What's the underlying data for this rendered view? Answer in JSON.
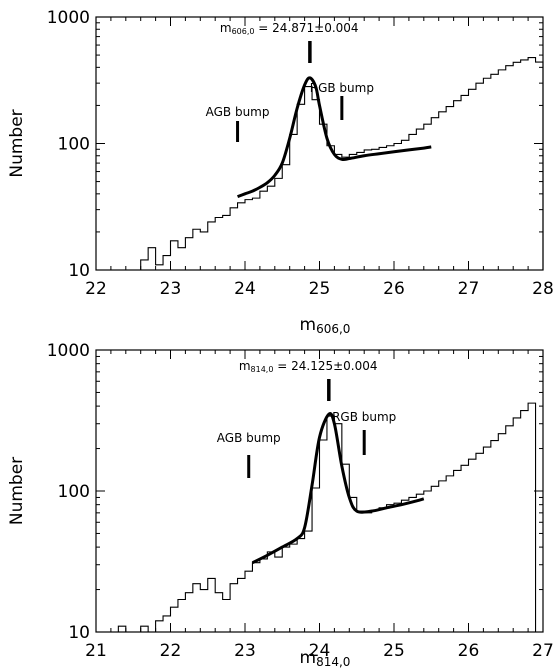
{
  "chart_data": [
    {
      "type": "line",
      "panel": "top",
      "xlim": [
        22,
        28
      ],
      "ylim": [
        10,
        1000
      ],
      "yscale": "log",
      "xticks": [
        "22",
        "23",
        "24",
        "25",
        "26",
        "27",
        "28"
      ],
      "yticks": [
        "10",
        "100",
        "1000"
      ],
      "xlabel": "m",
      "xlabel_sub": "606,0",
      "ylabel": "Number",
      "grid": false,
      "peak_label": {
        "prefix": "m",
        "sub": "606,0",
        "value": " = 24.871±0.004",
        "x": 24.871
      },
      "bumps": [
        {
          "label": "AGB bump",
          "x": 23.9
        },
        {
          "label": "RGB bump",
          "x": 25.3
        }
      ],
      "series": [
        {
          "kind": "histogram",
          "bin_edges": [
            22.5,
            22.6,
            22.7,
            22.8,
            22.9,
            23.0,
            23.1,
            23.2,
            23.3,
            23.4,
            23.5,
            23.6,
            23.7,
            23.8,
            23.9,
            24.0,
            24.1,
            24.2,
            24.3,
            24.4,
            24.5,
            24.6,
            24.7,
            24.8,
            24.9,
            25.0,
            25.1,
            25.2,
            25.3,
            25.4,
            25.5,
            25.6,
            25.7,
            25.8,
            25.9,
            26.0,
            26.1,
            26.2,
            26.3,
            26.4,
            26.5,
            26.6,
            26.7,
            26.8,
            26.9,
            27.0,
            27.1,
            27.2,
            27.3,
            27.4,
            27.5,
            27.6,
            27.7,
            27.8,
            27.9,
            28.0
          ],
          "counts": [
            10,
            12,
            15,
            11,
            13,
            17,
            15,
            18,
            21,
            20,
            24,
            26,
            27,
            31,
            34,
            36,
            37,
            42,
            46,
            53,
            68,
            118,
            204,
            282,
            222,
            142,
            96,
            82,
            78,
            82,
            85,
            89,
            90,
            93,
            96,
            100,
            106,
            118,
            130,
            142,
            160,
            178,
            196,
            218,
            240,
            268,
            300,
            328,
            352,
            382,
            412,
            438,
            458,
            478,
            440
          ]
        },
        {
          "kind": "fit",
          "x": [
            23.9,
            24.0,
            24.1,
            24.2,
            24.3,
            24.4,
            24.5,
            24.6,
            24.7,
            24.8,
            24.871,
            24.95,
            25.0,
            25.1,
            25.2,
            25.3,
            25.4,
            25.6,
            25.8,
            26.0,
            26.2,
            26.4,
            26.5
          ],
          "y": [
            38,
            40,
            42,
            45,
            49,
            56,
            70,
            110,
            190,
            290,
            330,
            280,
            200,
            110,
            82,
            75,
            76,
            80,
            83,
            86,
            89,
            92,
            94
          ]
        }
      ]
    },
    {
      "type": "line",
      "panel": "bottom",
      "xlim": [
        21,
        27
      ],
      "ylim": [
        10,
        1000
      ],
      "yscale": "log",
      "xticks": [
        "21",
        "22",
        "23",
        "24",
        "25",
        "26",
        "27"
      ],
      "yticks": [
        "10",
        "100",
        "1000"
      ],
      "xlabel": "m",
      "xlabel_sub": "814,0",
      "ylabel": "Number",
      "grid": false,
      "peak_label": {
        "prefix": "m",
        "sub": "814,0",
        "value": " = 24.125±0.004",
        "x": 24.125
      },
      "bumps": [
        {
          "label": "AGB bump",
          "x": 23.05
        },
        {
          "label": "RGB bump",
          "x": 24.6
        }
      ],
      "series": [
        {
          "kind": "histogram",
          "bin_edges": [
            21.3,
            21.4,
            21.5,
            21.6,
            21.7,
            21.8,
            21.9,
            22.0,
            22.1,
            22.2,
            22.3,
            22.4,
            22.5,
            22.6,
            22.7,
            22.8,
            22.9,
            23.0,
            23.1,
            23.2,
            23.3,
            23.4,
            23.5,
            23.6,
            23.7,
            23.8,
            23.9,
            24.0,
            24.1,
            24.2,
            24.3,
            24.4,
            24.5,
            24.6,
            24.7,
            24.8,
            24.9,
            25.0,
            25.1,
            25.2,
            25.3,
            25.4,
            25.5,
            25.6,
            25.7,
            25.8,
            25.9,
            26.0,
            26.1,
            26.2,
            26.3,
            26.4,
            26.5,
            26.6,
            26.7,
            26.8,
            26.9
          ],
          "counts": [
            11,
            10,
            10,
            11,
            10,
            12,
            13,
            15,
            17,
            19,
            22,
            20,
            24,
            19,
            17,
            22,
            24,
            27,
            31,
            33,
            37,
            34,
            40,
            42,
            46,
            52,
            105,
            230,
            340,
            300,
            155,
            90,
            72,
            70,
            73,
            76,
            80,
            82,
            86,
            90,
            95,
            100,
            108,
            118,
            128,
            140,
            152,
            168,
            185,
            205,
            228,
            255,
            290,
            330,
            372,
            420
          ]
        },
        {
          "kind": "fit",
          "x": [
            23.1,
            23.3,
            23.5,
            23.7,
            23.8,
            23.9,
            24.0,
            24.125,
            24.2,
            24.3,
            24.4,
            24.5,
            24.7,
            24.9,
            25.1,
            25.3,
            25.4
          ],
          "y": [
            31,
            35,
            40,
            46,
            55,
            110,
            240,
            350,
            300,
            150,
            90,
            72,
            72,
            76,
            80,
            85,
            88
          ]
        }
      ]
    }
  ]
}
